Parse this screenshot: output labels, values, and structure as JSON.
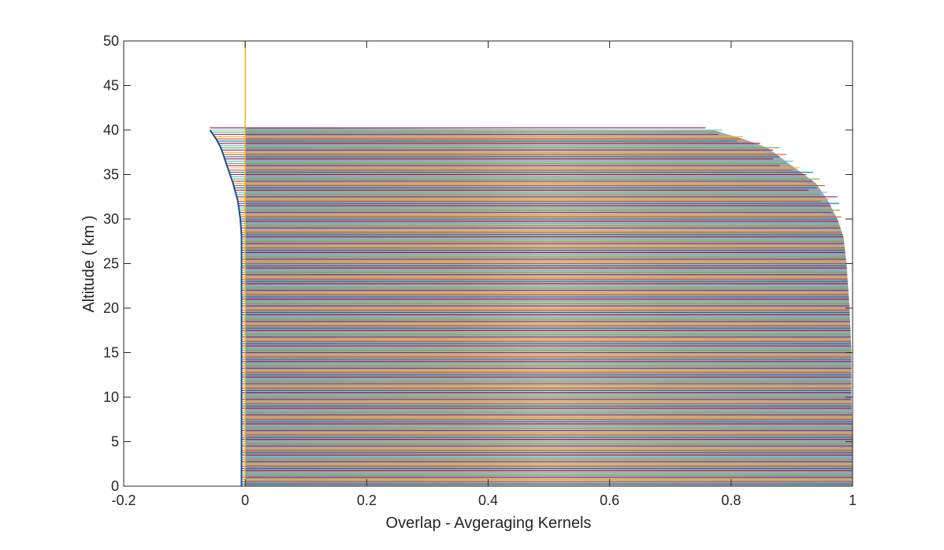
{
  "chart_data": {
    "type": "line",
    "title": "",
    "xlabel": "Overlap - Avgeraging Kernels",
    "ylabel": "Altitude ( km )",
    "xlim": [
      -0.2,
      1
    ],
    "ylim": [
      0,
      50
    ],
    "x_ticks": [
      -0.2,
      0,
      0.2,
      0.4,
      0.6,
      0.8,
      1
    ],
    "x_tick_labels": [
      "-0.2",
      "0",
      "0.2",
      "0.4",
      "0.6",
      "0.8",
      "1"
    ],
    "y_ticks": [
      0,
      5,
      10,
      15,
      20,
      25,
      30,
      35,
      40,
      45,
      50
    ],
    "y_tick_labels": [
      "0",
      "5",
      "10",
      "15",
      "20",
      "25",
      "30",
      "35",
      "40",
      "45",
      "50"
    ],
    "grid": false,
    "legend": "none",
    "series_colors": [
      "#0072BD",
      "#D95319",
      "#EDB120",
      "#7E2F8E",
      "#77AC30",
      "#4DBEEE",
      "#A2142F"
    ],
    "vertical_reference": {
      "x": 0,
      "y_range": [
        0,
        50
      ],
      "color": "#EDB120"
    },
    "kernel_rows": {
      "altitude_min": 0.25,
      "altitude_max": 40.25,
      "altitude_step": 0.25
    },
    "overlap_profile": [
      {
        "altitude": 0,
        "overlap": 1.0
      },
      {
        "altitude": 5,
        "overlap": 1.0
      },
      {
        "altitude": 10,
        "overlap": 0.998
      },
      {
        "altitude": 15,
        "overlap": 0.998
      },
      {
        "altitude": 20,
        "overlap": 0.995
      },
      {
        "altitude": 25,
        "overlap": 0.99
      },
      {
        "altitude": 28,
        "overlap": 0.985
      },
      {
        "altitude": 30,
        "overlap": 0.975
      },
      {
        "altitude": 32,
        "overlap": 0.96
      },
      {
        "altitude": 34,
        "overlap": 0.94
      },
      {
        "altitude": 35,
        "overlap": 0.92
      },
      {
        "altitude": 36,
        "overlap": 0.9
      },
      {
        "altitude": 37,
        "overlap": 0.88
      },
      {
        "altitude": 38,
        "overlap": 0.86
      },
      {
        "altitude": 39,
        "overlap": 0.82
      },
      {
        "altitude": 40,
        "overlap": 0.77
      }
    ],
    "negative_lobe_profile": [
      {
        "altitude": 0,
        "overlap": -0.006
      },
      {
        "altitude": 10,
        "overlap": -0.006
      },
      {
        "altitude": 20,
        "overlap": -0.006
      },
      {
        "altitude": 28,
        "overlap": -0.006
      },
      {
        "altitude": 30,
        "overlap": -0.008
      },
      {
        "altitude": 32,
        "overlap": -0.012
      },
      {
        "altitude": 34,
        "overlap": -0.02
      },
      {
        "altitude": 36,
        "overlap": -0.03
      },
      {
        "altitude": 38,
        "overlap": -0.04
      },
      {
        "altitude": 39,
        "overlap": -0.048
      },
      {
        "altitude": 40,
        "overlap": -0.058
      }
    ]
  }
}
